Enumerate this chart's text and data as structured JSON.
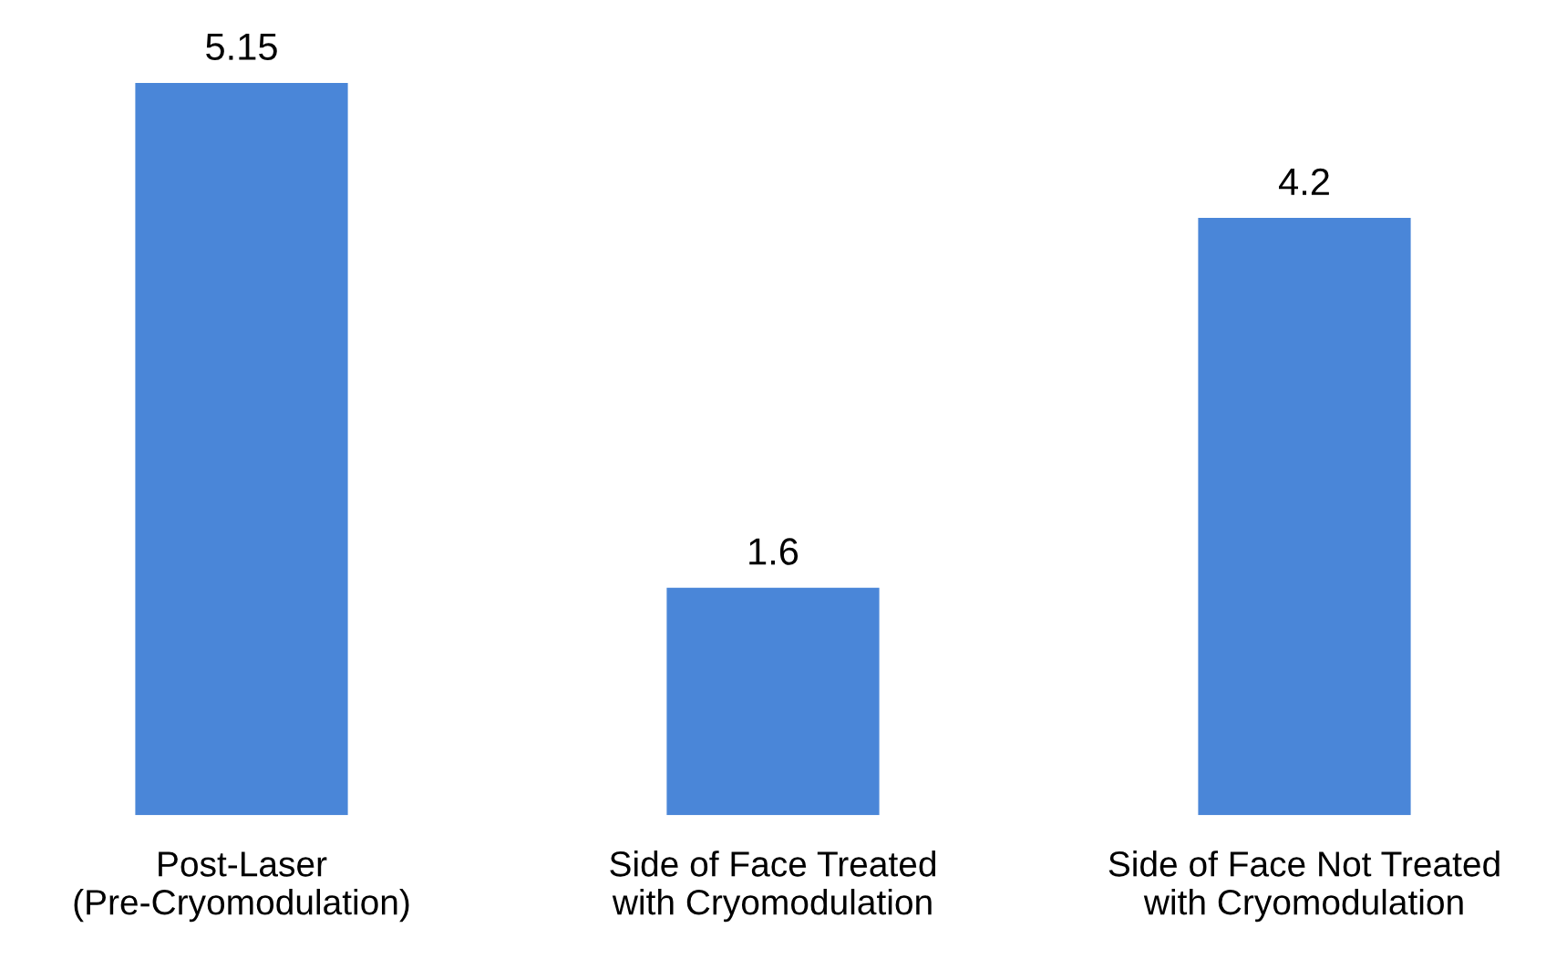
{
  "chart_data": {
    "type": "bar",
    "categories": [
      "Post-Laser\n(Pre-Cryomodulation)",
      "Side of Face Treated\nwith Cryomodulation",
      "Side of Face Not Treated\nwith Cryomodulation"
    ],
    "values": [
      5.15,
      1.6,
      4.2
    ],
    "color": "#4a86d8",
    "data_labels": true,
    "grid": false,
    "legend": false
  }
}
